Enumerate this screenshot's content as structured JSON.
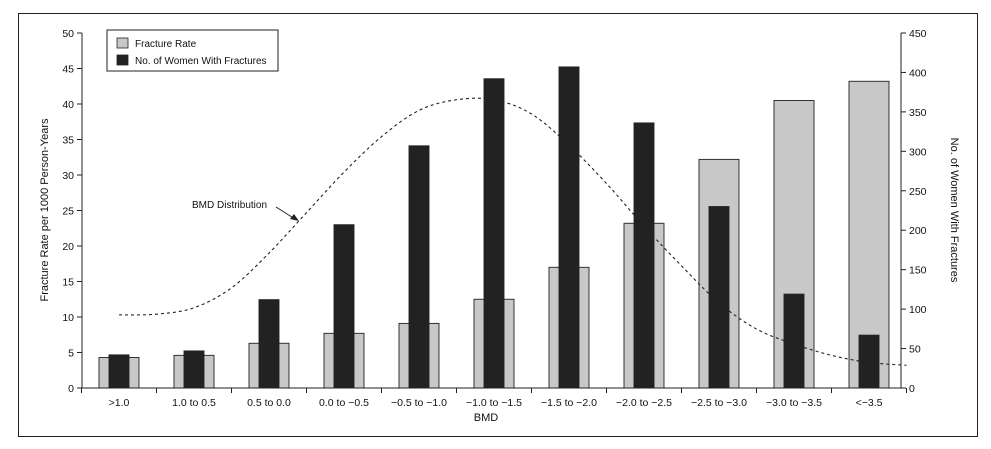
{
  "chart_data": {
    "type": "bar",
    "xlabel": "BMD",
    "ylabel_left": "Fracture Rate per 1000 Person-Years",
    "ylabel_right": "No. of Women With Fractures",
    "ylim_left": [
      0,
      50
    ],
    "ylim_right": [
      0,
      450
    ],
    "yticks_left": [
      0,
      5,
      10,
      15,
      20,
      25,
      30,
      35,
      40,
      45,
      50
    ],
    "yticks_right": [
      0,
      50,
      100,
      150,
      200,
      250,
      300,
      350,
      400,
      450
    ],
    "categories": [
      ">1.0",
      "1.0 to 0.5",
      "0.5 to 0.0",
      "0.0 to −0.5",
      "−0.5 to −1.0",
      "−1.0 to −1.5",
      "−1.5 to −2.0",
      "−2.0 to −2.5",
      "−2.5 to −3.0",
      "−3.0 to −3.5",
      "<−3.5"
    ],
    "series": [
      {
        "name": "Fracture Rate",
        "axis": "left",
        "color": "#c8c8c8",
        "values": [
          4.3,
          4.6,
          6.3,
          7.7,
          9.1,
          12.5,
          17.0,
          23.2,
          32.2,
          40.5,
          43.2
        ]
      },
      {
        "name": "No. of Women With Fractures",
        "axis": "right",
        "color": "#222222",
        "values": [
          42,
          47,
          112,
          207,
          307,
          392,
          407,
          336,
          230,
          119,
          67
        ]
      }
    ],
    "curve": {
      "label": "BMD Distribution",
      "style": "dashed",
      "x": [
        0,
        0.5,
        1,
        1.5,
        2,
        2.5,
        3,
        3.5,
        4,
        4.5,
        5,
        5.5,
        6,
        6.5,
        7,
        7.5,
        8,
        8.5,
        9,
        9.5,
        10,
        10.5
      ],
      "y": [
        10.3,
        10.4,
        11.3,
        14.1,
        19.0,
        24.7,
        30.4,
        35.4,
        39.1,
        40.6,
        40.6,
        38.6,
        34.2,
        28.8,
        22.8,
        17.2,
        12.0,
        8.3,
        6.2,
        4.6,
        3.6,
        3.2
      ]
    },
    "legend": "top-left",
    "grid": false
  }
}
